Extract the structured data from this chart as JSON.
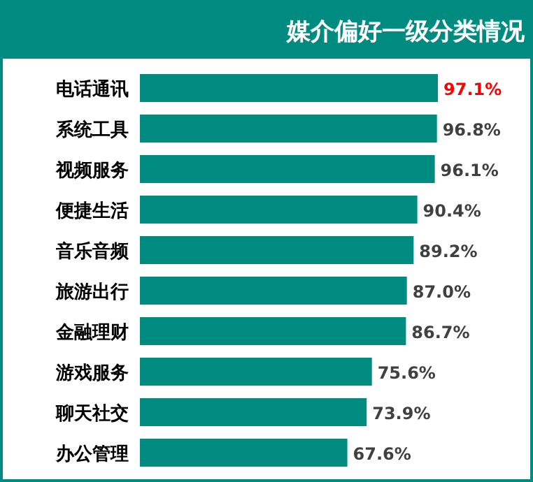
{
  "chart_data": {
    "type": "bar",
    "orientation": "horizontal",
    "title": "媒介偏好一级分类情况",
    "categories": [
      "电话通讯",
      "系统工具",
      "视频服务",
      "便捷生活",
      "音乐音频",
      "旅游出行",
      "金融理财",
      "游戏服务",
      "聊天社交",
      "办公管理"
    ],
    "values": [
      97.1,
      96.8,
      96.1,
      90.4,
      89.2,
      87.0,
      86.7,
      75.6,
      73.9,
      67.6
    ],
    "value_labels": [
      "97.1%",
      "96.8%",
      "96.1%",
      "90.4%",
      "89.2%",
      "87.0%",
      "86.7%",
      "75.6%",
      "73.9%",
      "67.6%"
    ],
    "color": "#008b80"
  }
}
